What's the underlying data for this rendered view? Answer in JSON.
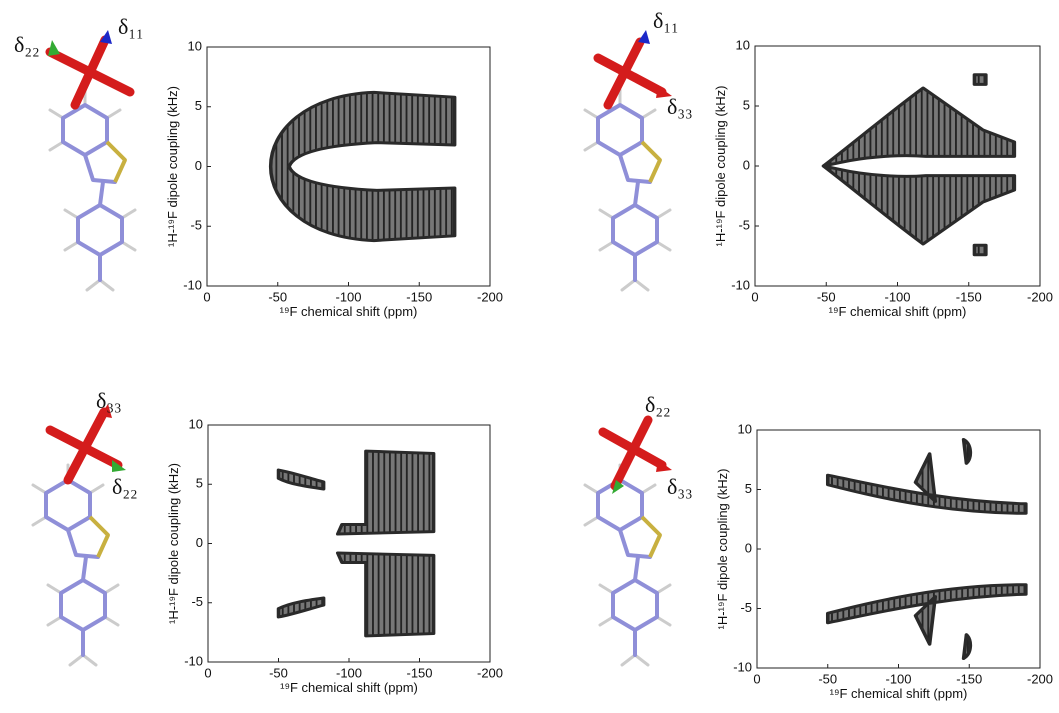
{
  "chart_data": [
    {
      "type": "contour",
      "xlabel": "¹⁹F chemical shift (ppm)",
      "ylabel": "¹H-¹⁹F dipole coupling (kHz)",
      "xlim": [
        0,
        -200
      ],
      "ylim": [
        -10,
        10
      ],
      "xticks": [
        0,
        -50,
        -100,
        -150,
        -200
      ],
      "yticks": [
        -10,
        -5,
        0,
        5,
        10
      ],
      "annotations": [
        "δ₂₂",
        "δ₁₁"
      ]
    },
    {
      "type": "contour",
      "xlabel": "¹⁹F chemical shift (ppm)",
      "ylabel": "¹H-¹⁹F dipole coupling (kHz)",
      "xlim": [
        0,
        -200
      ],
      "ylim": [
        -10,
        10
      ],
      "xticks": [
        0,
        -50,
        -100,
        -150,
        -200
      ],
      "yticks": [
        -10,
        -5,
        0,
        5,
        10
      ],
      "annotations": [
        "δ₁₁",
        "δ₃₃"
      ]
    },
    {
      "type": "contour",
      "xlabel": "¹⁹F chemical shift (ppm)",
      "ylabel": "¹H-¹⁹F dipole coupling (kHz)",
      "xlim": [
        0,
        -200
      ],
      "ylim": [
        -10,
        10
      ],
      "xticks": [
        0,
        -50,
        -100,
        -150,
        -200
      ],
      "yticks": [
        -10,
        -5,
        0,
        5,
        10
      ],
      "annotations": [
        "δ₃₃",
        "δ₂₂"
      ]
    },
    {
      "type": "contour",
      "xlabel": "¹⁹F chemical shift (ppm)",
      "ylabel": "¹H-¹⁹F dipole coupling (kHz)",
      "xlim": [
        0,
        -200
      ],
      "ylim": [
        -10,
        10
      ],
      "xticks": [
        0,
        -50,
        -100,
        -150,
        -200
      ],
      "yticks": [
        -10,
        -5,
        0,
        5,
        10
      ],
      "annotations": [
        "δ₂₂",
        "δ₃₃"
      ]
    }
  ]
}
